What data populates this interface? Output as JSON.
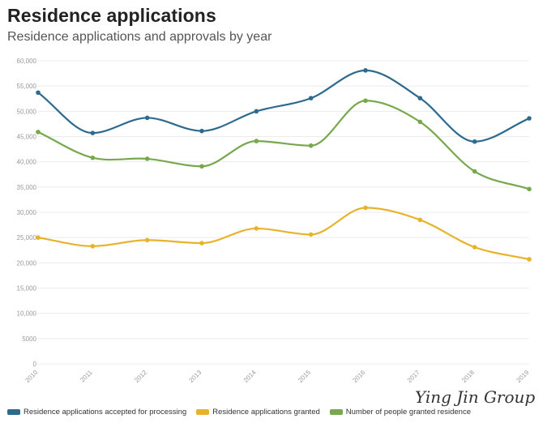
{
  "header": {
    "title": "Residence applications",
    "subtitle": "Residence applications and approvals by year"
  },
  "watermark": "Ying Jin Group",
  "chart_data": {
    "type": "line",
    "title": "Residence applications",
    "subtitle": "Residence applications and approvals by year",
    "xlabel": "",
    "ylabel": "",
    "categories": [
      "2010",
      "2011",
      "2012",
      "2013",
      "2014",
      "2015",
      "2016",
      "2017",
      "2018",
      "2019"
    ],
    "ylim": [
      0,
      60000
    ],
    "yticks": [
      0,
      5000,
      10000,
      15000,
      20000,
      25000,
      30000,
      35000,
      40000,
      45000,
      50000,
      55000,
      60000
    ],
    "ytick_labels": [
      "0",
      "5000",
      "10,000",
      "15,000",
      "20,000",
      "25,000",
      "30,000",
      "35,000",
      "40,000",
      "45,000",
      "50,000",
      "55,000",
      "60,000"
    ],
    "grid": true,
    "legend_position": "bottom-left",
    "series": [
      {
        "name": "Residence applications accepted for processing",
        "color": "#2e6a8e",
        "values": [
          53700,
          45700,
          48700,
          46100,
          50000,
          52600,
          58100,
          52600,
          44000,
          48600
        ]
      },
      {
        "name": "Residence applications granted",
        "color": "#e8b32c",
        "values": [
          25000,
          23300,
          24500,
          23900,
          26800,
          25600,
          30900,
          28500,
          23100,
          20700
        ]
      },
      {
        "name": "Number of people granted residence",
        "color": "#77a84b",
        "values": [
          45900,
          40800,
          40600,
          39100,
          44100,
          43200,
          52100,
          47900,
          38100,
          34600
        ]
      }
    ]
  }
}
